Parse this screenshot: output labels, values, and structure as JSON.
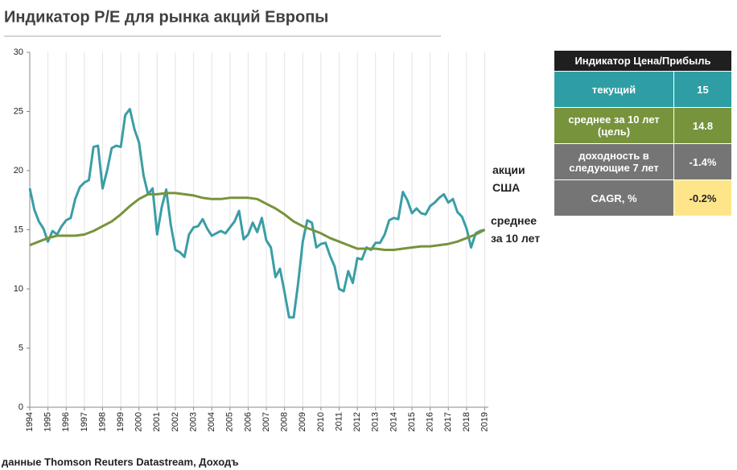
{
  "chart_data": {
    "type": "line",
    "title": "Индикатор P/E для рынка акций Европы",
    "source": "данные Thomson Reuters Datastream, Доходъ",
    "xlim": [
      1994,
      2019.2
    ],
    "xticks": [
      1994,
      1995,
      1996,
      1997,
      1998,
      1999,
      2000,
      2001,
      2002,
      2003,
      2004,
      2005,
      2006,
      2007,
      2008,
      2009,
      2010,
      2011,
      2012,
      2013,
      2014,
      2015,
      2016,
      2017,
      2018,
      2019
    ],
    "ylim": [
      0,
      30
    ],
    "yticks": [
      0,
      5,
      10,
      15,
      20,
      25,
      30
    ],
    "grid": "x",
    "series": [
      {
        "name": "акции США",
        "color": "#3a9ea5",
        "x": [
          1994,
          1994.25,
          1994.5,
          1994.75,
          1995,
          1995.25,
          1995.5,
          1995.75,
          1996,
          1996.25,
          1996.5,
          1996.75,
          1997,
          1997.25,
          1997.5,
          1997.75,
          1998,
          1998.25,
          1998.5,
          1998.75,
          1999,
          1999.25,
          1999.5,
          1999.75,
          2000,
          2000.25,
          2000.5,
          2000.75,
          2001,
          2001.25,
          2001.5,
          2001.75,
          2002,
          2002.25,
          2002.5,
          2002.75,
          2003,
          2003.25,
          2003.5,
          2003.75,
          2004,
          2004.25,
          2004.5,
          2004.75,
          2005,
          2005.25,
          2005.5,
          2005.75,
          2006,
          2006.25,
          2006.5,
          2006.75,
          2007,
          2007.25,
          2007.5,
          2007.75,
          2008,
          2008.25,
          2008.5,
          2008.75,
          2009,
          2009.25,
          2009.5,
          2009.75,
          2010,
          2010.25,
          2010.5,
          2010.75,
          2011,
          2011.25,
          2011.5,
          2011.75,
          2012,
          2012.25,
          2012.5,
          2012.75,
          2013,
          2013.25,
          2013.5,
          2013.75,
          2014,
          2014.25,
          2014.5,
          2014.75,
          2015,
          2015.25,
          2015.5,
          2015.75,
          2016,
          2016.25,
          2016.5,
          2016.75,
          2017,
          2017.25,
          2017.5,
          2017.75,
          2018,
          2018.25,
          2018.5,
          2018.75,
          2019
        ],
        "values": [
          18.5,
          16.7,
          15.7,
          15.1,
          14.0,
          14.9,
          14.6,
          15.3,
          15.8,
          16.0,
          17.6,
          18.6,
          19.0,
          19.2,
          22.0,
          22.1,
          18.5,
          20.0,
          21.9,
          22.1,
          22.0,
          24.7,
          25.2,
          23.5,
          22.4,
          19.6,
          18.0,
          18.5,
          14.6,
          16.9,
          18.4,
          15.4,
          13.3,
          13.1,
          12.7,
          14.6,
          15.2,
          15.3,
          15.9,
          15.1,
          14.5,
          14.7,
          14.9,
          14.7,
          15.2,
          15.7,
          16.6,
          14.2,
          14.6,
          15.6,
          14.8,
          16.0,
          14.1,
          13.5,
          11.0,
          11.7,
          9.7,
          7.6,
          7.6,
          10.5,
          14.0,
          15.8,
          15.6,
          13.5,
          13.8,
          13.9,
          12.8,
          11.9,
          10.0,
          9.8,
          11.5,
          10.5,
          12.6,
          12.5,
          13.5,
          13.3,
          13.9,
          13.9,
          14.6,
          15.8,
          16.0,
          15.9,
          18.2,
          17.5,
          16.4,
          16.8,
          16.4,
          16.3,
          17.0,
          17.3,
          17.7,
          18.0,
          17.3,
          17.6,
          16.5,
          16.1,
          15.1,
          13.5,
          14.7,
          14.9,
          15.0
        ]
      },
      {
        "name": "среднее за 10 лет",
        "color": "#77933c",
        "x": [
          1994,
          1994.5,
          1995,
          1995.5,
          1996,
          1996.5,
          1997,
          1997.5,
          1998,
          1998.5,
          1999,
          1999.5,
          2000,
          2000.5,
          2001,
          2001.5,
          2002,
          2002.5,
          2003,
          2003.5,
          2004,
          2004.5,
          2005,
          2005.5,
          2006,
          2006.5,
          2007,
          2007.5,
          2008,
          2008.5,
          2009,
          2009.5,
          2010,
          2010.5,
          2011,
          2011.5,
          2012,
          2012.5,
          2013,
          2013.5,
          2014,
          2014.5,
          2015,
          2015.5,
          2016,
          2016.5,
          2017,
          2017.5,
          2018,
          2018.5,
          2019
        ],
        "values": [
          13.7,
          14.0,
          14.3,
          14.5,
          14.5,
          14.5,
          14.6,
          14.9,
          15.3,
          15.7,
          16.3,
          17.0,
          17.6,
          18.0,
          18.0,
          18.1,
          18.1,
          18.0,
          17.9,
          17.7,
          17.6,
          17.6,
          17.7,
          17.7,
          17.7,
          17.6,
          17.2,
          16.8,
          16.3,
          15.7,
          15.3,
          15.0,
          14.7,
          14.3,
          14.0,
          13.7,
          13.4,
          13.4,
          13.4,
          13.3,
          13.3,
          13.4,
          13.5,
          13.6,
          13.6,
          13.7,
          13.8,
          14.0,
          14.3,
          14.6,
          15.0
        ]
      }
    ]
  },
  "table": {
    "header": "Индикатор Цена/Прибыль",
    "rows": [
      [
        "текущий",
        "15"
      ],
      [
        "среднее за 10 лет (цель)",
        "14.8"
      ],
      [
        "доходность в следующие 7 лет",
        "-1.4%"
      ],
      [
        "CAGR, %",
        "-0.2%"
      ]
    ]
  }
}
